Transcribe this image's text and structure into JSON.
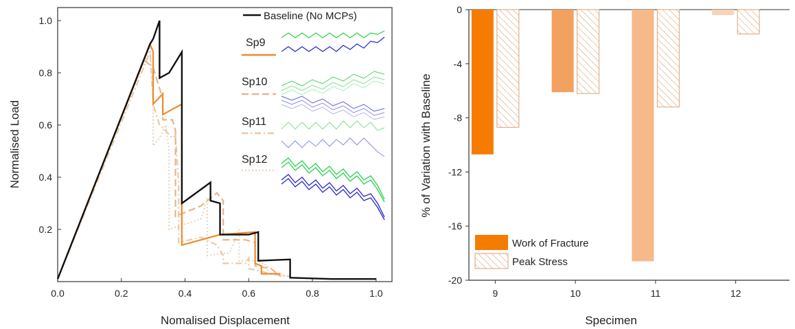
{
  "chart_data": [
    {
      "type": "line",
      "xlabel": "Nomalised Displacement",
      "ylabel": "Normalised Load",
      "xlim": [
        0,
        1.05
      ],
      "ylim": [
        0,
        1.05
      ],
      "xticks": [
        "0.0",
        "0.2",
        "0.4",
        "0.6",
        "0.8",
        "1.0"
      ],
      "yticks": [
        "0.2",
        "0.4",
        "0.6",
        "0.8",
        "1.0"
      ],
      "legend_position": "top-right",
      "series": [
        {
          "name": "Baseline (No MCPs)",
          "color": "#111111",
          "style": "solid",
          "x": [
            0.0,
            0.29,
            0.3,
            0.32,
            0.32,
            0.35,
            0.39,
            0.39,
            0.48,
            0.48,
            0.51,
            0.51,
            0.6,
            0.63,
            0.63,
            0.73,
            0.73,
            0.86,
            1.0
          ],
          "y": [
            0.01,
            0.91,
            0.93,
            1.0,
            0.78,
            0.8,
            0.88,
            0.3,
            0.38,
            0.31,
            0.3,
            0.18,
            0.18,
            0.19,
            0.08,
            0.085,
            0.015,
            0.01,
            0.01
          ]
        },
        {
          "name": "Sp9",
          "color": "#ee8a2c",
          "style": "solid",
          "x": [
            0.0,
            0.29,
            0.3,
            0.3,
            0.33,
            0.33,
            0.36,
            0.39,
            0.39,
            0.48,
            0.51,
            0.62,
            0.62,
            0.64,
            0.64,
            0.7
          ],
          "y": [
            0.01,
            0.91,
            0.88,
            0.68,
            0.72,
            0.64,
            0.66,
            0.68,
            0.14,
            0.17,
            0.18,
            0.19,
            0.07,
            0.06,
            0.03,
            0.03
          ]
        },
        {
          "name": "Sp10",
          "color": "#e6b58a",
          "style": "dashed",
          "x": [
            0.0,
            0.27,
            0.3,
            0.32,
            0.33,
            0.33,
            0.36,
            0.37,
            0.37,
            0.45,
            0.5,
            0.52,
            0.52,
            0.59,
            0.62,
            0.62,
            0.67,
            0.7
          ],
          "y": [
            0.01,
            0.85,
            0.82,
            0.74,
            0.7,
            0.62,
            0.62,
            0.58,
            0.25,
            0.29,
            0.34,
            0.31,
            0.16,
            0.16,
            0.15,
            0.06,
            0.05,
            0.02
          ]
        },
        {
          "name": "Sp11",
          "color": "#e8c8a8",
          "style": "dashdot",
          "x": [
            0.0,
            0.29,
            0.3,
            0.32,
            0.33,
            0.36,
            0.37,
            0.38,
            0.38,
            0.45,
            0.5,
            0.52,
            0.52,
            0.59,
            0.6,
            0.6,
            0.67,
            0.73
          ],
          "y": [
            0.01,
            0.88,
            0.68,
            0.6,
            0.59,
            0.55,
            0.56,
            0.38,
            0.15,
            0.17,
            0.14,
            0.1,
            0.07,
            0.07,
            0.09,
            0.05,
            0.03,
            0.02
          ]
        },
        {
          "name": "Sp12",
          "color": "#ecd2bc",
          "style": "dotted",
          "x": [
            0.0,
            0.29,
            0.3,
            0.3,
            0.32,
            0.34,
            0.35,
            0.35,
            0.4,
            0.45,
            0.47,
            0.47,
            0.54,
            0.57,
            0.57,
            0.63,
            0.66,
            0.66,
            0.72
          ],
          "y": [
            0.01,
            0.9,
            0.7,
            0.52,
            0.55,
            0.6,
            0.5,
            0.2,
            0.22,
            0.24,
            0.32,
            0.1,
            0.11,
            0.2,
            0.08,
            0.08,
            0.06,
            0.03,
            0.02
          ]
        }
      ]
    },
    {
      "type": "bar",
      "xlabel": "Specimen",
      "ylabel": "% of Variation with Baseline",
      "ylim": [
        -20,
        0
      ],
      "yticks": [
        "0",
        "-4",
        "-8",
        "-12",
        "-16",
        "-20"
      ],
      "categories": [
        "9",
        "10",
        "11",
        "12"
      ],
      "legend_position": "bottom-left",
      "series": [
        {
          "name": "Work of Fracture",
          "values": [
            -10.7,
            -6.1,
            -18.6,
            -0.4
          ],
          "colors": [
            "#f57c00",
            "#f2a15e",
            "#f6b98a",
            "#f9d2b5"
          ],
          "fill": "solid"
        },
        {
          "name": "Peak Stress",
          "values": [
            -8.7,
            -6.2,
            -7.2,
            -1.8
          ],
          "colors": [
            "#d9a277",
            "#d9a277",
            "#d9a277",
            "#d9a277"
          ],
          "fill": "hatched"
        }
      ]
    }
  ]
}
